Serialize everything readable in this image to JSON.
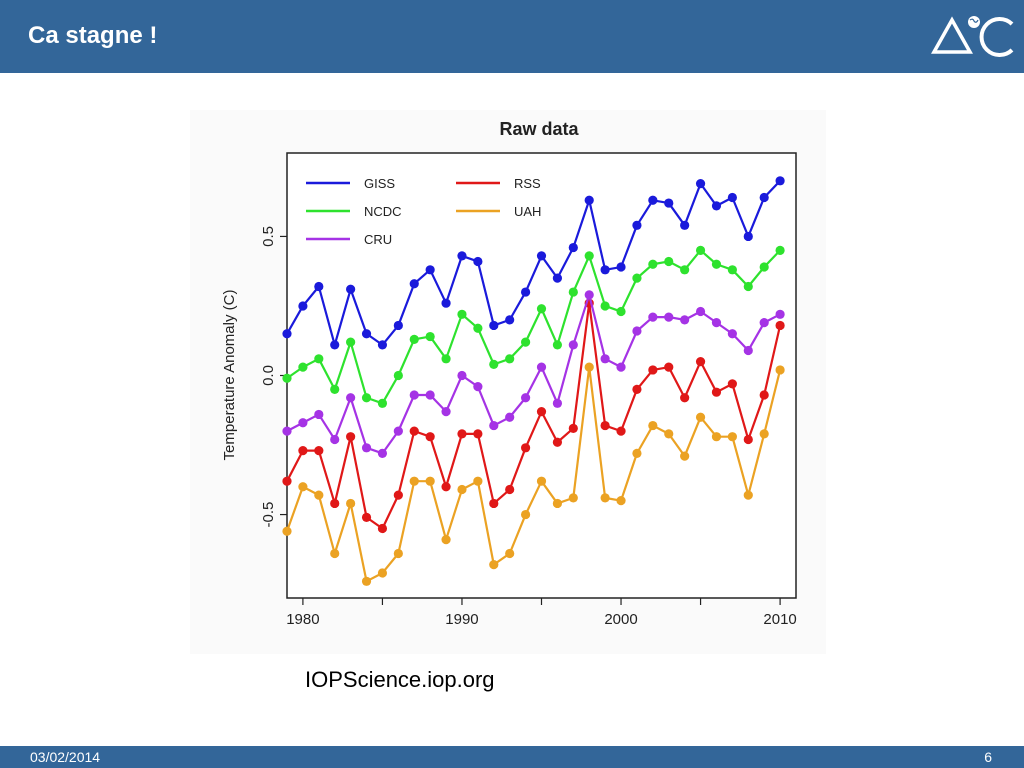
{
  "header": {
    "title": "Ca stagne !"
  },
  "logo": {
    "text": "ΔC",
    "icon": "globe-icon"
  },
  "source_text": "IOPScience.iop.org",
  "footer": {
    "date": "03/02/2014",
    "page": "6"
  },
  "colors": {
    "bar": "#336699"
  },
  "chart_data": {
    "type": "line",
    "title": "Raw data",
    "xlabel": "",
    "ylabel": "Temperature Anomaly (C)",
    "xlim": [
      1979,
      2011
    ],
    "ylim": [
      -0.8,
      0.8
    ],
    "x_ticks": [
      1980,
      1985,
      1990,
      1995,
      2000,
      2005,
      2010
    ],
    "x_tick_labels": [
      "1980",
      "",
      "1990",
      "",
      "2000",
      "",
      "2010"
    ],
    "y_ticks": [
      -0.5,
      0.0,
      0.5
    ],
    "y_tick_labels": [
      "-0.5",
      "0.0",
      "0.5"
    ],
    "legend_position": "top",
    "x": [
      1979,
      1980,
      1981,
      1982,
      1983,
      1984,
      1985,
      1986,
      1987,
      1988,
      1989,
      1990,
      1991,
      1992,
      1993,
      1994,
      1995,
      1996,
      1997,
      1998,
      1999,
      2000,
      2001,
      2002,
      2003,
      2004,
      2005,
      2006,
      2007,
      2008,
      2009,
      2010
    ],
    "series": [
      {
        "name": "GISS",
        "color": "#1a1adb",
        "values": [
          0.15,
          0.25,
          0.32,
          0.11,
          0.31,
          0.15,
          0.11,
          0.18,
          0.33,
          0.38,
          0.26,
          0.43,
          0.41,
          0.18,
          0.2,
          0.3,
          0.43,
          0.35,
          0.46,
          0.63,
          0.38,
          0.39,
          0.54,
          0.63,
          0.62,
          0.54,
          0.69,
          0.61,
          0.64,
          0.5,
          0.64,
          0.7
        ]
      },
      {
        "name": "RSS",
        "color": "#e01818",
        "values": [
          -0.38,
          -0.27,
          -0.27,
          -0.46,
          -0.22,
          -0.51,
          -0.55,
          -0.43,
          -0.2,
          -0.22,
          -0.4,
          -0.21,
          -0.21,
          -0.46,
          -0.41,
          -0.26,
          -0.13,
          -0.24,
          -0.19,
          0.26,
          -0.18,
          -0.2,
          -0.05,
          0.02,
          0.03,
          -0.08,
          0.05,
          -0.06,
          -0.03,
          -0.23,
          -0.07,
          0.18
        ]
      },
      {
        "name": "NCDC",
        "color": "#2ee22e",
        "values": [
          -0.01,
          0.03,
          0.06,
          -0.05,
          0.12,
          -0.08,
          -0.1,
          0.0,
          0.13,
          0.14,
          0.06,
          0.22,
          0.17,
          0.04,
          0.06,
          0.12,
          0.24,
          0.11,
          0.3,
          0.43,
          0.25,
          0.23,
          0.35,
          0.4,
          0.41,
          0.38,
          0.45,
          0.4,
          0.38,
          0.32,
          0.39,
          0.45
        ]
      },
      {
        "name": "UAH",
        "color": "#eba223",
        "values": [
          -0.56,
          -0.4,
          -0.43,
          -0.64,
          -0.46,
          -0.74,
          -0.71,
          -0.64,
          -0.38,
          -0.38,
          -0.59,
          -0.41,
          -0.38,
          -0.68,
          -0.64,
          -0.5,
          -0.38,
          -0.46,
          -0.44,
          0.03,
          -0.44,
          -0.45,
          -0.28,
          -0.18,
          -0.21,
          -0.29,
          -0.15,
          -0.22,
          -0.22,
          -0.43,
          -0.21,
          0.02
        ]
      },
      {
        "name": "CRU",
        "color": "#a533e5",
        "values": [
          -0.2,
          -0.17,
          -0.14,
          -0.23,
          -0.08,
          -0.26,
          -0.28,
          -0.2,
          -0.07,
          -0.07,
          -0.13,
          0.0,
          -0.04,
          -0.18,
          -0.15,
          -0.08,
          0.03,
          -0.1,
          0.11,
          0.29,
          0.06,
          0.03,
          0.16,
          0.21,
          0.21,
          0.2,
          0.23,
          0.19,
          0.15,
          0.09,
          0.19,
          0.22
        ]
      }
    ]
  }
}
